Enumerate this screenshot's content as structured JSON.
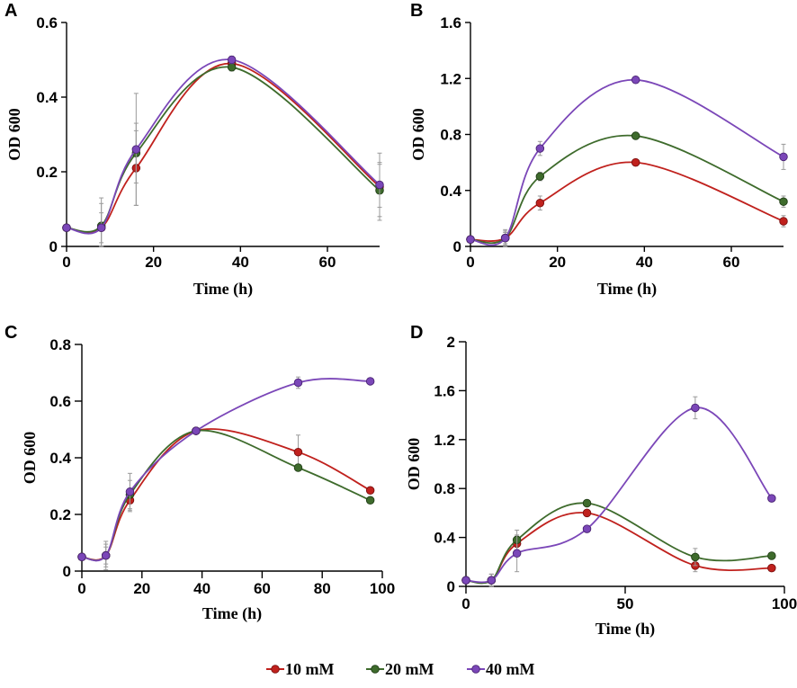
{
  "figure": {
    "legend": [
      {
        "label": "10 mM",
        "color": "#c0211d",
        "edge": "#7a1010"
      },
      {
        "label": "20 mM",
        "color": "#3e6b2c",
        "edge": "#203d16"
      },
      {
        "label": "40 mM",
        "color": "#7b47b8",
        "edge": "#4a2474"
      }
    ]
  },
  "chart_data": [
    {
      "panel": "A",
      "type": "line",
      "xlabel": "Time (h)",
      "ylabel": "OD 600",
      "xlim": [
        0,
        72
      ],
      "ylim": [
        0,
        0.6
      ],
      "xticks": [
        0,
        20,
        40,
        60
      ],
      "xtick_labels": [
        "0",
        "20",
        "40",
        "60"
      ],
      "yticks": [
        0,
        0.2,
        0.4,
        0.6
      ],
      "ytick_labels": [
        "0",
        "0.2",
        "0.4",
        "0.6"
      ],
      "x": [
        0,
        8,
        16,
        38,
        72
      ],
      "series": [
        {
          "name": "10 mM",
          "values": [
            0.05,
            0.05,
            0.21,
            0.49,
            0.16
          ],
          "errors": [
            0,
            0.08,
            0.1,
            0.01,
            0.09
          ]
        },
        {
          "name": "20 mM",
          "values": [
            0.05,
            0.055,
            0.25,
            0.48,
            0.15
          ],
          "errors": [
            0,
            0.06,
            0.08,
            0.01,
            0.07
          ]
        },
        {
          "name": "40 mM",
          "values": [
            0.05,
            0.05,
            0.26,
            0.5,
            0.165
          ],
          "errors": [
            0,
            0.04,
            0.15,
            0.01,
            0.06
          ]
        }
      ]
    },
    {
      "panel": "B",
      "type": "line",
      "xlabel": "Time (h)",
      "ylabel": "OD 600",
      "xlim": [
        0,
        72
      ],
      "ylim": [
        0,
        1.6
      ],
      "xticks": [
        0,
        20,
        40,
        60
      ],
      "xtick_labels": [
        "0",
        "20",
        "40",
        "60"
      ],
      "yticks": [
        0,
        0.4,
        0.8,
        1.2,
        1.6
      ],
      "ytick_labels": [
        "0",
        "0.4",
        "0.8",
        "1.2",
        "1.6"
      ],
      "x": [
        0,
        8,
        16,
        38,
        72
      ],
      "series": [
        {
          "name": "10 mM",
          "values": [
            0.05,
            0.06,
            0.31,
            0.6,
            0.18
          ],
          "errors": [
            0,
            0.06,
            0.05,
            0.01,
            0.04
          ]
        },
        {
          "name": "20 mM",
          "values": [
            0.05,
            0.06,
            0.5,
            0.79,
            0.32
          ],
          "errors": [
            0,
            0.05,
            0.03,
            0.01,
            0.04
          ]
        },
        {
          "name": "40 mM",
          "values": [
            0.05,
            0.06,
            0.7,
            1.19,
            0.64
          ],
          "errors": [
            0,
            0.04,
            0.05,
            0.01,
            0.09
          ]
        }
      ]
    },
    {
      "panel": "C",
      "type": "line",
      "xlabel": "Time (h)",
      "ylabel": "OD 600",
      "xlim": [
        0,
        100
      ],
      "ylim": [
        0,
        0.8
      ],
      "xticks": [
        0,
        20,
        40,
        60,
        80,
        100
      ],
      "xtick_labels": [
        "0",
        "20",
        "40",
        "60",
        "80",
        "100"
      ],
      "yticks": [
        0,
        0.2,
        0.4,
        0.6,
        0.8
      ],
      "ytick_labels": [
        "0",
        "0.2",
        "0.4",
        "0.6",
        "0.8"
      ],
      "x": [
        0,
        8,
        16,
        38,
        72,
        96
      ],
      "series": [
        {
          "name": "10 mM",
          "values": [
            0.05,
            0.055,
            0.25,
            0.495,
            0.42,
            0.285
          ],
          "errors": [
            0,
            0.05,
            0.04,
            0.01,
            0.06,
            0.01
          ]
        },
        {
          "name": "20 mM",
          "values": [
            0.05,
            0.055,
            0.27,
            0.495,
            0.365,
            0.25
          ],
          "errors": [
            0,
            0.04,
            0.05,
            0.01,
            0.01,
            0.01
          ]
        },
        {
          "name": "40 mM",
          "values": [
            0.05,
            0.055,
            0.28,
            0.495,
            0.665,
            0.67
          ],
          "errors": [
            0,
            0.03,
            0.065,
            0.01,
            0.02,
            0.01
          ]
        }
      ]
    },
    {
      "panel": "D",
      "type": "line",
      "xlabel": "Time (h)",
      "ylabel": "OD 600",
      "xlim": [
        0,
        100
      ],
      "ylim": [
        0,
        2
      ],
      "xticks": [
        0,
        50,
        100
      ],
      "xtick_labels": [
        "0",
        "50",
        "100"
      ],
      "yticks": [
        0,
        0.4,
        0.8,
        1.2,
        1.6,
        2
      ],
      "ytick_labels": [
        "0",
        "0.4",
        "0.8",
        "1.2",
        "1.6",
        "2"
      ],
      "x": [
        0,
        8,
        16,
        38,
        72,
        96
      ],
      "series": [
        {
          "name": "10 mM",
          "values": [
            0.05,
            0.05,
            0.35,
            0.6,
            0.17,
            0.15
          ],
          "errors": [
            0,
            0.05,
            0.06,
            0.02,
            0.05,
            0.01
          ]
        },
        {
          "name": "20 mM",
          "values": [
            0.05,
            0.05,
            0.38,
            0.68,
            0.24,
            0.25
          ],
          "errors": [
            0,
            0.05,
            0.08,
            0.02,
            0.07,
            0.01
          ]
        },
        {
          "name": "40 mM",
          "values": [
            0.05,
            0.05,
            0.27,
            0.47,
            1.46,
            0.72
          ],
          "errors": [
            0,
            0.05,
            0.15,
            0.01,
            0.09,
            0.01
          ]
        }
      ]
    }
  ]
}
